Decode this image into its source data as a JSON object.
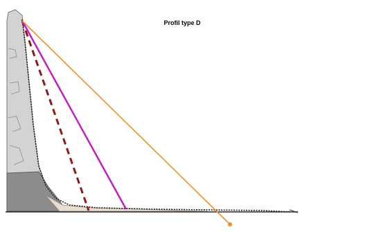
{
  "figure": {
    "title": "Profil type D"
  },
  "colors": {
    "background": "#ffffff",
    "rock_upper": "#d3d3d3",
    "rock_lower": "#8c8c8c",
    "talus": "#e8ddd0",
    "outline": "#1a1a1a",
    "dashed_line": "#8b1a1a",
    "magenta_line": "#c21fc2",
    "orange_line": "#f0902a",
    "orange_marker": "#f0902a"
  },
  "legend_items": []
}
